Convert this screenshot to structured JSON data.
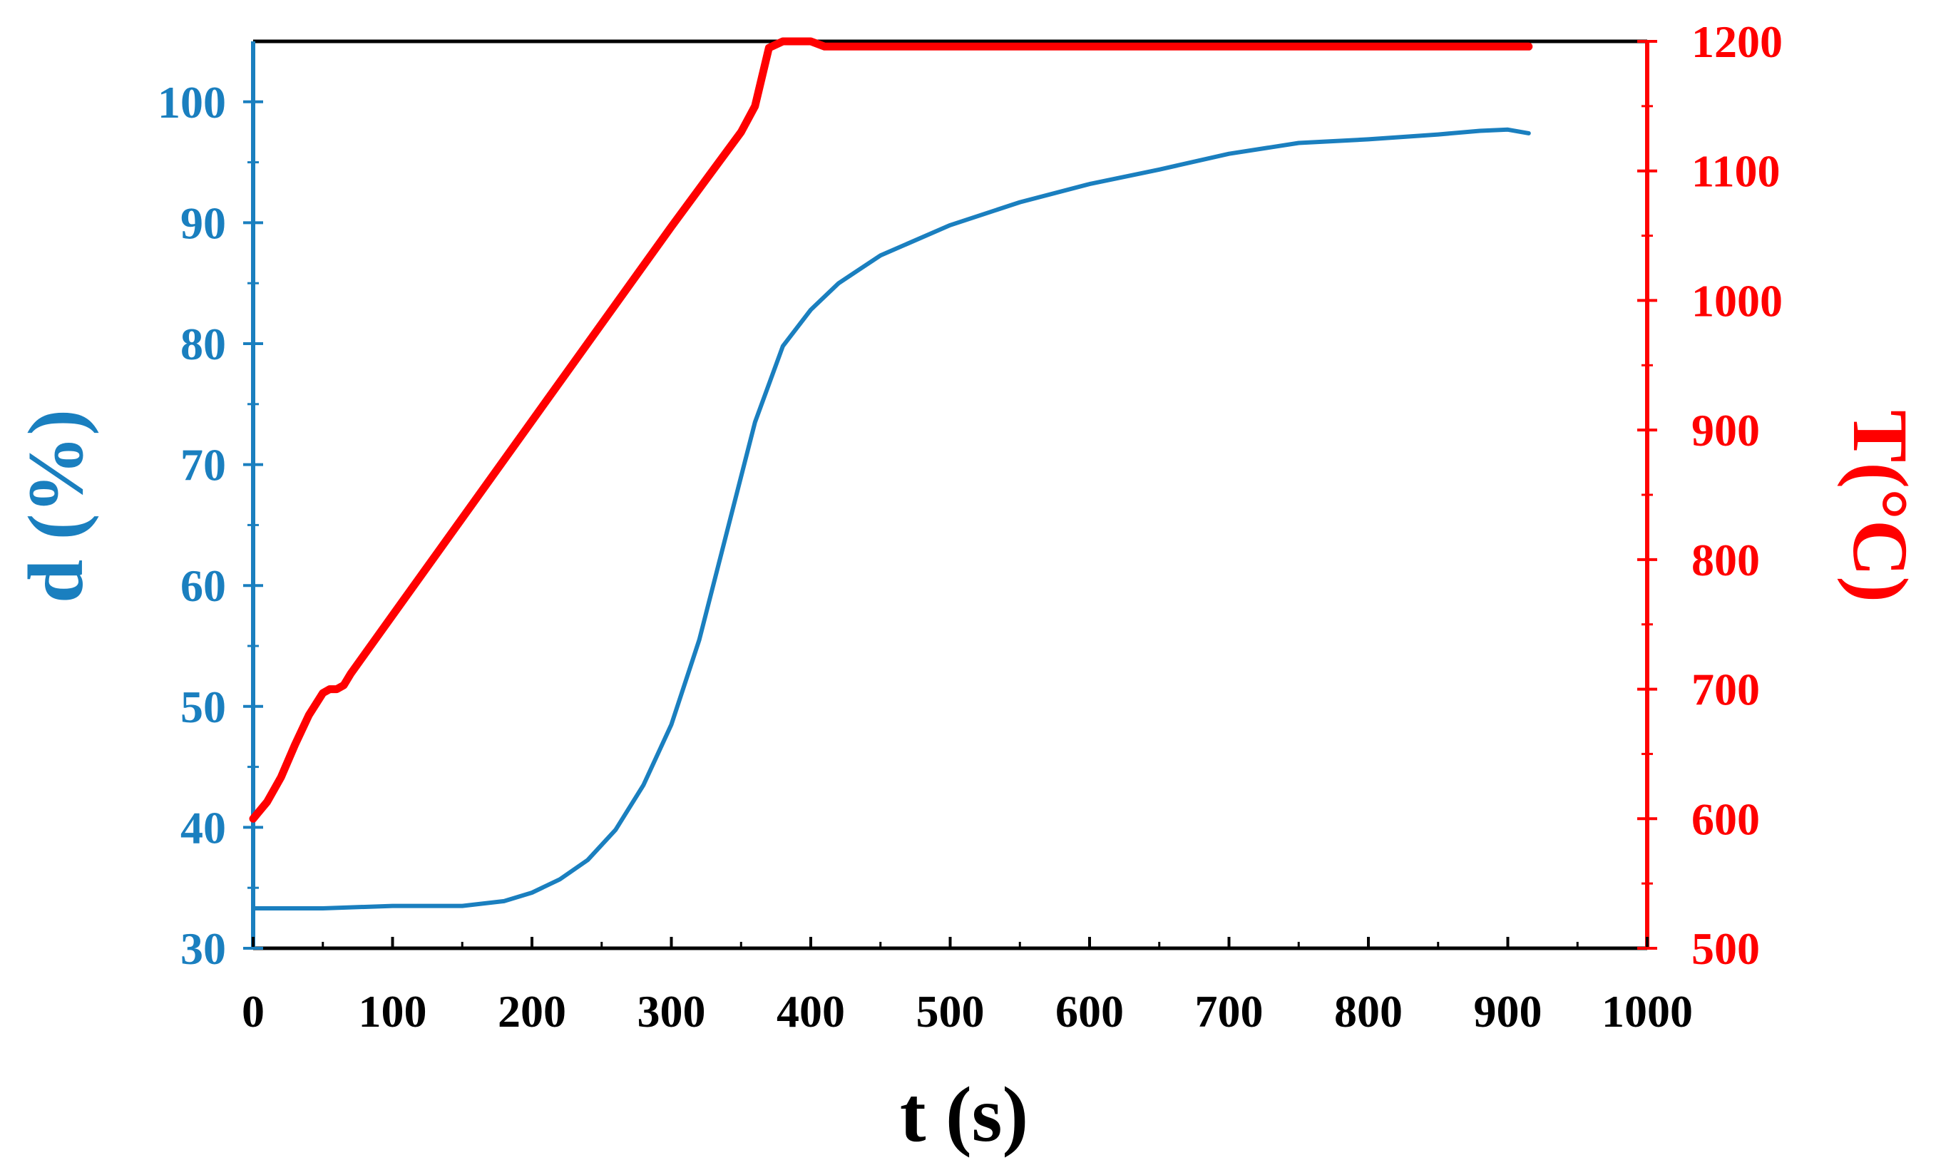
{
  "chart_data": {
    "type": "line",
    "title": "",
    "xlabel": "t (s)",
    "ylabel_left": "d (%)",
    "ylabel_right": "T(°C)",
    "xlim": [
      0,
      1000
    ],
    "ylim_left": [
      30,
      105
    ],
    "ylim_right": [
      500,
      1200
    ],
    "x_ticks": [
      "0",
      "100",
      "200",
      "300",
      "400",
      "500",
      "600",
      "700",
      "800",
      "900",
      "1000"
    ],
    "y_left_ticks": [
      "30",
      "40",
      "50",
      "60",
      "70",
      "80",
      "90",
      "100"
    ],
    "y_right_ticks": [
      "500",
      "600",
      "700",
      "800",
      "900",
      "1000",
      "1100",
      "1200"
    ],
    "grid": false,
    "colors": {
      "density": "#1a7fbf",
      "temperature": "#ff0000",
      "axis": "#000000"
    },
    "series": [
      {
        "name": "d (%)",
        "axis": "left",
        "x": [
          0,
          50,
          100,
          150,
          180,
          200,
          220,
          240,
          260,
          280,
          300,
          320,
          340,
          360,
          380,
          400,
          420,
          450,
          500,
          550,
          600,
          650,
          700,
          750,
          800,
          850,
          880,
          900,
          915
        ],
        "y": [
          33.3,
          33.3,
          33.5,
          33.5,
          33.9,
          34.6,
          35.7,
          37.3,
          39.8,
          43.5,
          48.5,
          55.5,
          64.5,
          73.5,
          79.8,
          82.8,
          85.0,
          87.3,
          89.8,
          91.7,
          93.2,
          94.4,
          95.7,
          96.6,
          96.9,
          97.3,
          97.6,
          97.7,
          97.4
        ]
      },
      {
        "name": "T(°C)",
        "axis": "right",
        "x": [
          0,
          10,
          20,
          30,
          40,
          50,
          55,
          60,
          65,
          70,
          100,
          150,
          200,
          250,
          300,
          350,
          360,
          370,
          380,
          400,
          410,
          500,
          600,
          700,
          800,
          900,
          915
        ],
        "y": [
          600,
          613,
          632,
          657,
          680,
          697,
          700,
          700,
          703,
          712,
          757,
          832,
          907,
          982,
          1057,
          1130,
          1150,
          1195,
          1200,
          1200,
          1196,
          1196,
          1196,
          1196,
          1196,
          1196,
          1196
        ]
      }
    ]
  }
}
